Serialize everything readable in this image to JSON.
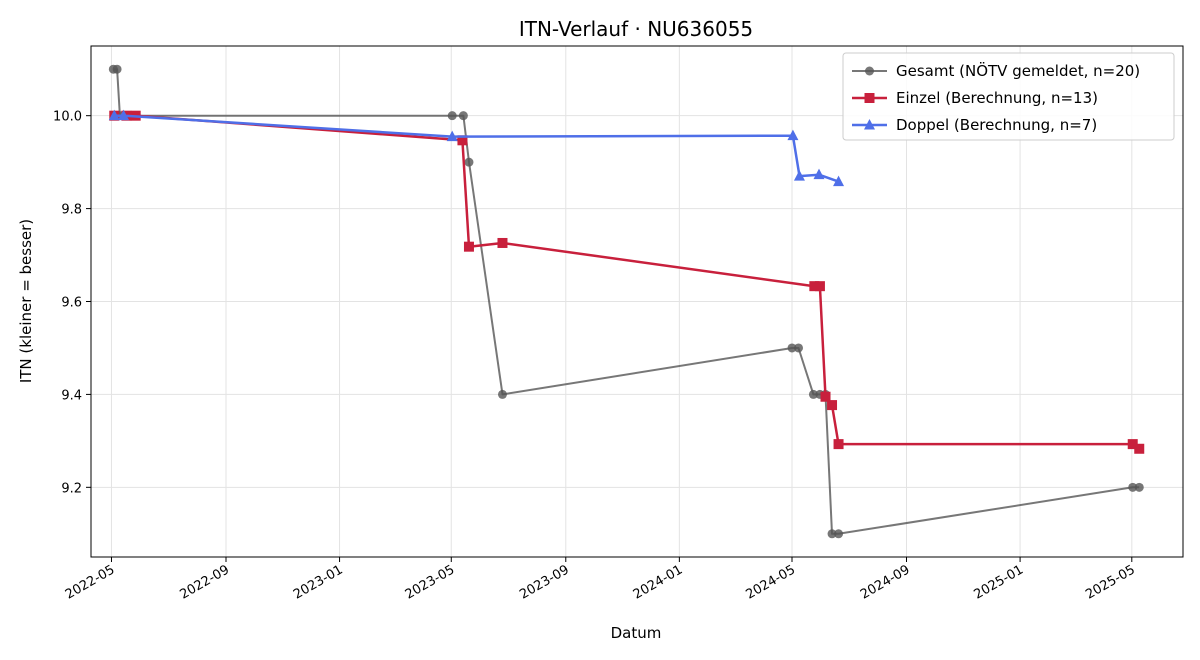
{
  "chart_data": {
    "type": "line",
    "title": "ITN-Verlauf · NU636055",
    "xlabel": "Datum",
    "ylabel": "ITN  (kleiner = besser)",
    "x_axis": "date",
    "xlim": [
      "2022-04-09",
      "2025-06-25"
    ],
    "ylim": [
      9.05,
      10.15
    ],
    "x_ticks": [
      "2022-05-01",
      "2022-09-01",
      "2023-01-01",
      "2023-05-01",
      "2023-09-01",
      "2024-01-01",
      "2024-05-01",
      "2024-09-01",
      "2025-01-01",
      "2025-05-01"
    ],
    "x_tick_labels": [
      "2022-05",
      "2022-09",
      "2023-01",
      "2023-05",
      "2023-09",
      "2024-01",
      "2024-05",
      "2024-09",
      "2025-01",
      "2025-05"
    ],
    "y_ticks": [
      9.2,
      9.4,
      9.6,
      9.8,
      10.0
    ],
    "y_tick_labels": [
      "9.2",
      "9.4",
      "9.6",
      "9.8",
      "10.0"
    ],
    "grid": true,
    "legend_position": "top-right",
    "series": [
      {
        "name": "Gesamt (NÖTV gemeldet, n=20)",
        "color": "#555555",
        "marker": "circle",
        "points": [
          [
            "2022-05-03",
            10.1
          ],
          [
            "2022-05-07",
            10.1
          ],
          [
            "2022-05-10",
            10.0
          ],
          [
            "2022-05-25",
            10.0
          ],
          [
            "2023-05-02",
            10.0
          ],
          [
            "2023-05-14",
            10.0
          ],
          [
            "2023-05-20",
            9.9
          ],
          [
            "2023-06-25",
            9.4
          ],
          [
            "2024-05-01",
            9.5
          ],
          [
            "2024-05-08",
            9.5
          ],
          [
            "2024-05-24",
            9.4
          ],
          [
            "2024-05-31",
            9.4
          ],
          [
            "2024-06-06",
            9.4
          ],
          [
            "2024-06-13",
            9.1
          ],
          [
            "2024-06-20",
            9.1
          ],
          [
            "2025-05-02",
            9.2
          ],
          [
            "2025-05-09",
            9.2
          ]
        ]
      },
      {
        "name": "Einzel (Berechnung, n=13)",
        "color": "#c8203c",
        "marker": "square",
        "points": [
          [
            "2022-05-04",
            10.0
          ],
          [
            "2022-05-17",
            10.0
          ],
          [
            "2022-05-27",
            10.0
          ],
          [
            "2023-05-13",
            9.947
          ],
          [
            "2023-05-20",
            9.718
          ],
          [
            "2023-06-25",
            9.726
          ],
          [
            "2024-05-25",
            9.633
          ],
          [
            "2024-05-31",
            9.633
          ],
          [
            "2024-06-06",
            9.395
          ],
          [
            "2024-06-13",
            9.377
          ],
          [
            "2024-06-20",
            9.293
          ],
          [
            "2025-05-02",
            9.293
          ],
          [
            "2025-05-09",
            9.283
          ]
        ]
      },
      {
        "name": "Doppel (Berechnung, n=7)",
        "color": "#4f6fe8",
        "marker": "triangle",
        "points": [
          [
            "2022-05-04",
            10.0
          ],
          [
            "2022-05-14",
            10.0
          ],
          [
            "2023-05-02",
            9.955
          ],
          [
            "2024-05-02",
            9.957
          ],
          [
            "2024-05-09",
            9.87
          ],
          [
            "2024-05-30",
            9.873
          ],
          [
            "2024-06-20",
            9.858
          ]
        ]
      }
    ]
  }
}
